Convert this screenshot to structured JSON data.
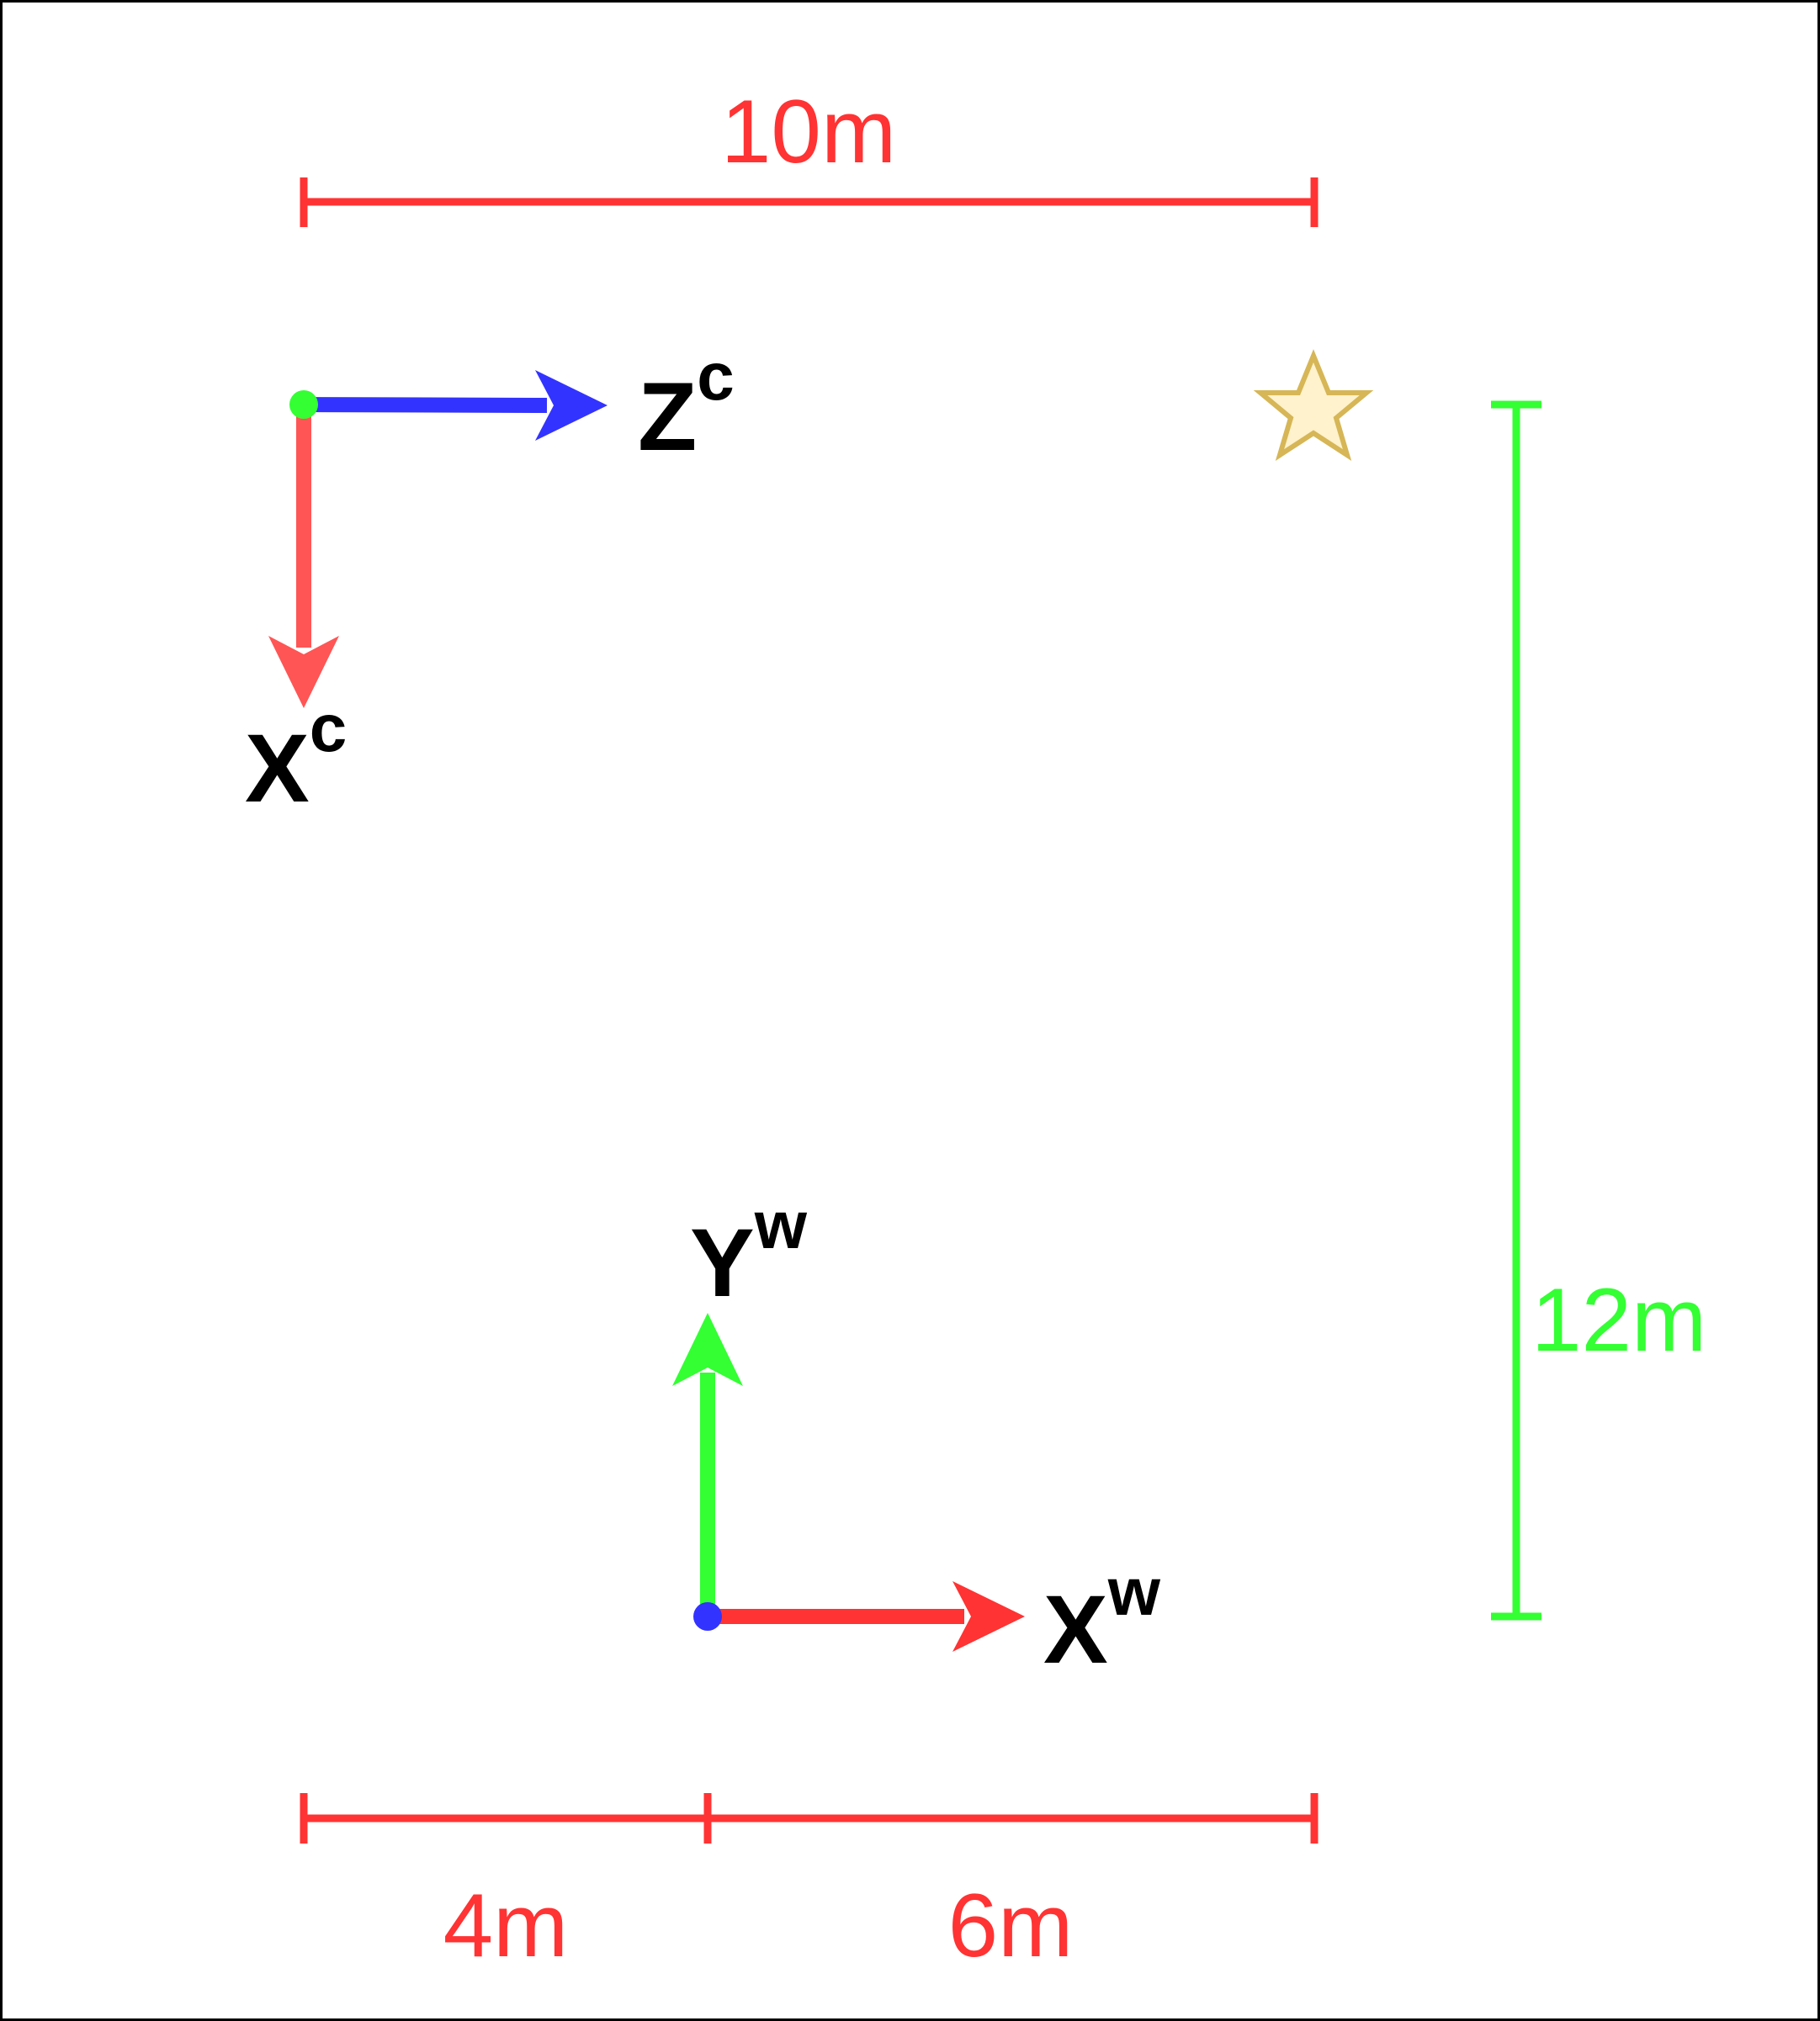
{
  "colors": {
    "red": "#ff3333",
    "green": "#33ff33",
    "blue": "#3333ff",
    "black": "#000000",
    "star_fill": "#fff2cc",
    "star_stroke": "#d6b656",
    "border": "#000000"
  },
  "dimensions": {
    "top_width": "10m",
    "right_height": "12m",
    "bottom_left": "4m",
    "bottom_right": "6m"
  },
  "camera_frame": {
    "z_axis": {
      "base": "Z",
      "sup": "c"
    },
    "x_axis": {
      "base": "X",
      "sup": "c"
    }
  },
  "world_frame": {
    "y_axis": {
      "base": "Y",
      "sup": "w"
    },
    "x_axis": {
      "base": "X",
      "sup": "w"
    }
  },
  "icons": {
    "target": "star-icon",
    "camera_origin": "green-dot",
    "world_origin": "blue-dot"
  }
}
